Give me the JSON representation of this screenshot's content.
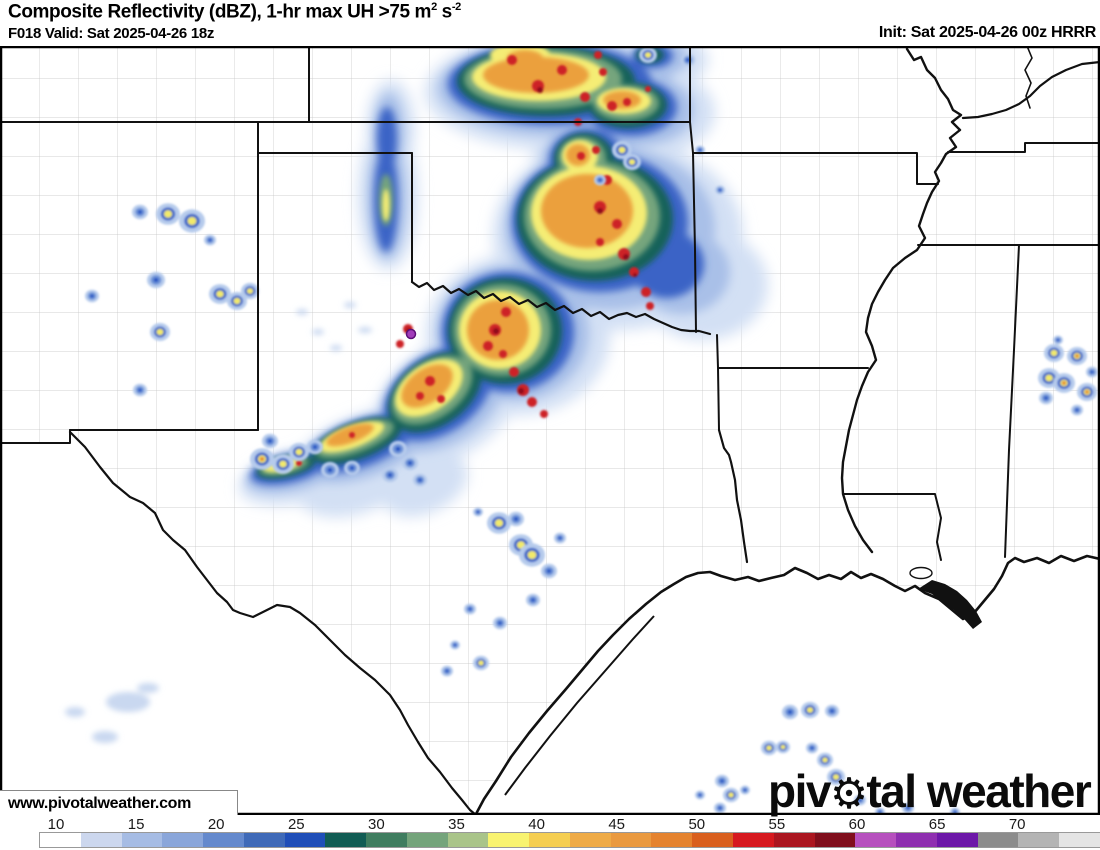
{
  "header": {
    "title_main": "Composite Reflectivity (dBZ), 1-hr max UH >75 m",
    "title_sup1": "2",
    "title_mid": " s",
    "title_sup2": "-2",
    "valid": "F018 Valid: Sat 2025-04-26 18z",
    "init": "Init: Sat 2025-04-26 00z HRRR"
  },
  "watermark": "www.pivotalweather.com",
  "logo": {
    "pre": "piv",
    "gear_icon": "⚙",
    "post": "tal weather"
  },
  "colorbar": {
    "unit": "dBZ",
    "labels": [
      "10",
      "15",
      "20",
      "25",
      "30",
      "35",
      "40",
      "45",
      "50",
      "55",
      "60",
      "65",
      "70"
    ],
    "label_start_x": 56,
    "label_step_x": 80.1,
    "colors": [
      "#ffffff",
      "#ccd7ee",
      "#a6bce4",
      "#8aa6da",
      "#6489cd",
      "#3f6ab8",
      "#1f4eb8",
      "#115c54",
      "#3f7d5f",
      "#74a47b",
      "#a9c489",
      "#f8f370",
      "#f5ce51",
      "#efab47",
      "#ea9a40",
      "#e5832f",
      "#d95f1e",
      "#d6191f",
      "#ab1620",
      "#800e1c",
      "#b650be",
      "#8f2fb0",
      "#6d17a8",
      "#8c8c8c",
      "#b4b4b4",
      "#e4e4e4"
    ]
  },
  "map_colors": {
    "state_border": "#111111",
    "county_line": "#c3c3c3",
    "water_outline": "#111111",
    "background": "#ffffff",
    "uh_marker": "#a13cba"
  }
}
